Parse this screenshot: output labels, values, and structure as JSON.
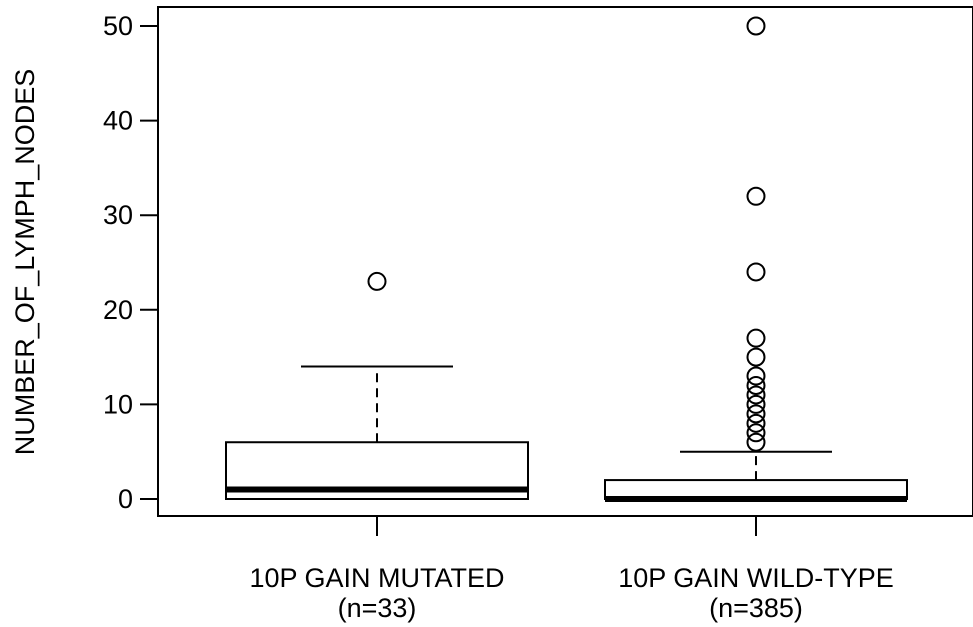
{
  "chart_data": {
    "type": "boxplot",
    "title": "",
    "xlabel": "",
    "ylabel": "NUMBER_OF_LYMPH_NODES",
    "ylim": [
      -2.5,
      52
    ],
    "yticks": [
      0,
      10,
      20,
      30,
      40,
      50
    ],
    "grid": false,
    "categories": [
      {
        "label": "10P GAIN MUTATED",
        "n_label": "(n=33)"
      },
      {
        "label": "10P GAIN WILD-TYPE",
        "n_label": "(n=385)"
      }
    ],
    "series": [
      {
        "category": "10P GAIN MUTATED",
        "whisker_low": 0,
        "q1": 0,
        "median": 1,
        "q3": 6,
        "whisker_high": 14,
        "outliers": [
          23
        ]
      },
      {
        "category": "10P GAIN WILD-TYPE",
        "whisker_low": 0,
        "q1": 0,
        "median": 0,
        "q3": 2,
        "whisker_high": 5,
        "outliers": [
          6,
          7,
          8,
          9,
          10,
          11,
          12,
          13,
          15,
          17,
          24,
          32,
          50
        ]
      }
    ]
  }
}
